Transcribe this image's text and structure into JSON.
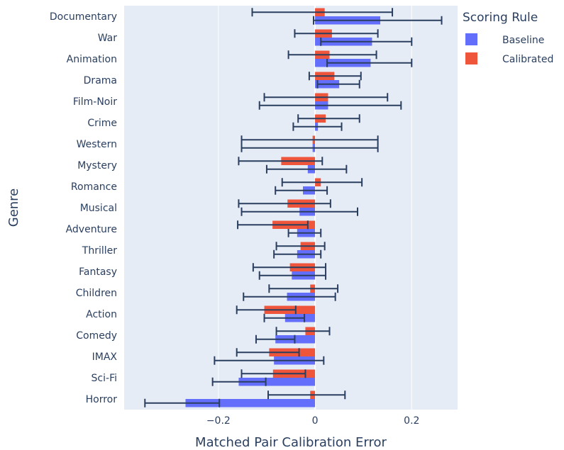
{
  "chart_data": {
    "type": "bar",
    "orientation": "horizontal",
    "grouping": "grouped",
    "xlabel": "Matched Pair Calibration Error",
    "ylabel": "Genre",
    "xlim": [
      -0.395,
      0.295
    ],
    "xticks": [
      -0.2,
      0,
      0.2
    ],
    "xtick_labels": [
      "−0.2",
      "0",
      "0.2"
    ],
    "grid": true,
    "legend_title": "Scoring Rule",
    "legend_position": "right",
    "categories": [
      "Documentary",
      "War",
      "Animation",
      "Drama",
      "Film-Noir",
      "Crime",
      "Western",
      "Mystery",
      "Romance",
      "Musical",
      "Adventure",
      "Thriller",
      "Fantasy",
      "Children",
      "Action",
      "Comedy",
      "IMAX",
      "Sci-Fi",
      "Horror"
    ],
    "series": [
      {
        "name": "Baseline",
        "color": "#636efa",
        "values": [
          0.135,
          0.118,
          0.115,
          0.05,
          0.027,
          0.006,
          -0.005,
          -0.015,
          -0.025,
          -0.032,
          -0.037,
          -0.037,
          -0.048,
          -0.058,
          -0.062,
          -0.082,
          -0.085,
          -0.158,
          -0.268
        ],
        "error_low": [
          -0.003,
          0.012,
          0.025,
          0.005,
          -0.115,
          -0.045,
          -0.152,
          -0.1,
          -0.082,
          -0.152,
          -0.055,
          -0.085,
          -0.115,
          -0.148,
          -0.105,
          -0.122,
          -0.208,
          -0.212,
          -0.352
        ],
        "error_high": [
          0.262,
          0.2,
          0.2,
          0.092,
          0.178,
          0.055,
          0.13,
          0.065,
          0.025,
          0.088,
          0.012,
          0.012,
          0.022,
          0.042,
          -0.022,
          -0.042,
          0.018,
          -0.102,
          -0.198
        ]
      },
      {
        "name": "Calibrated",
        "color": "#ef553b",
        "values": [
          0.02,
          0.035,
          0.03,
          0.04,
          0.027,
          0.022,
          -0.005,
          -0.07,
          0.012,
          -0.057,
          -0.088,
          -0.03,
          -0.052,
          -0.01,
          -0.105,
          -0.02,
          -0.095,
          -0.087,
          -0.01
        ],
        "error_low": [
          -0.13,
          -0.042,
          -0.055,
          -0.012,
          -0.105,
          -0.035,
          -0.152,
          -0.158,
          -0.068,
          -0.158,
          -0.16,
          -0.08,
          -0.128,
          -0.095,
          -0.162,
          -0.08,
          -0.162,
          -0.152,
          -0.097
        ],
        "error_high": [
          0.16,
          0.13,
          0.127,
          0.095,
          0.15,
          0.092,
          0.13,
          0.015,
          0.097,
          0.032,
          -0.015,
          0.02,
          0.022,
          0.047,
          -0.04,
          0.03,
          -0.033,
          -0.02,
          0.062
        ]
      }
    ]
  }
}
